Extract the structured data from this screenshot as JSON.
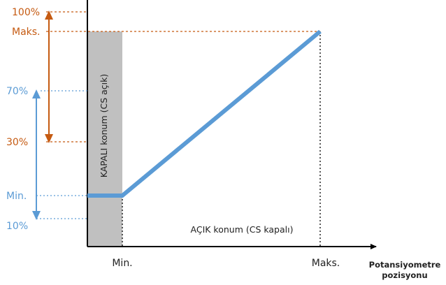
{
  "colors": {
    "orange": "#c55a11",
    "blue": "#5b9bd5",
    "gray_band": "#c0c0c0",
    "axis": "#000000"
  },
  "y_labels": {
    "p100": "100%",
    "maks": "Maks.",
    "p70": "70%",
    "p30": "30%",
    "min": "Min.",
    "p10": "10%"
  },
  "x_labels": {
    "min": "Min.",
    "maks": "Maks."
  },
  "axis_title": {
    "line1": "Potansiyometre",
    "line2": "pozisyonu"
  },
  "regions": {
    "off": "KAPALI konum (CS açık)",
    "on": "AÇIK konum (CS kapalı)"
  }
}
